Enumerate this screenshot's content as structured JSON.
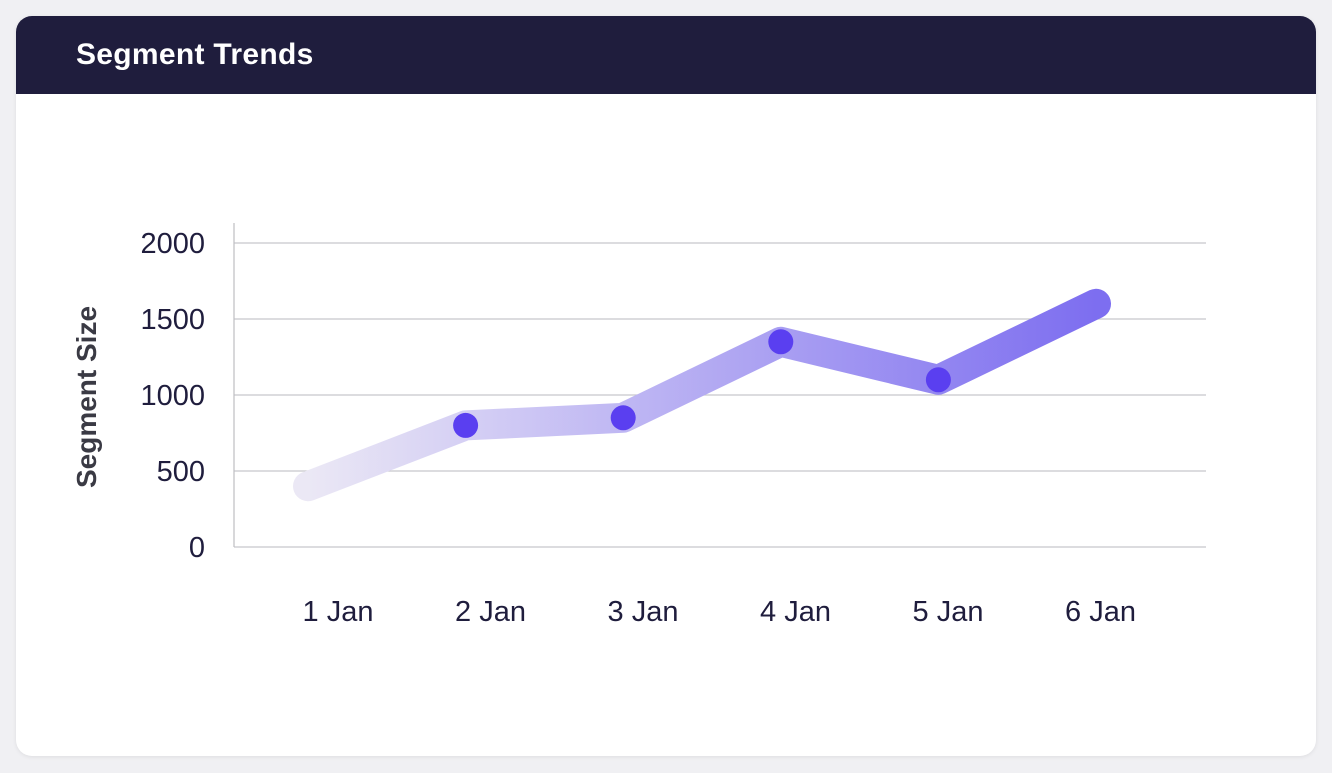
{
  "header": {
    "title": "Segment Trends"
  },
  "chart_data": {
    "type": "line",
    "title": "Segment Trends",
    "xlabel": "",
    "ylabel": "Segment Size",
    "categories": [
      "1 Jan",
      "2 Jan",
      "3 Jan",
      "4 Jan",
      "5 Jan",
      "6 Jan"
    ],
    "series": [
      {
        "values": [
          400,
          800,
          850,
          1350,
          1100,
          1600
        ],
        "markers": [
          false,
          true,
          true,
          true,
          true,
          false
        ]
      }
    ],
    "yticks": [
      0,
      500,
      1000,
      1500,
      2000
    ],
    "ylim": [
      0,
      2000
    ],
    "grid": true,
    "legend": "none",
    "colors": {
      "line_start": "#ebe8f5",
      "line_end": "#7d6ef0",
      "marker": "#5a3ff0",
      "grid": "#c8c8cc",
      "axis": "#bdbdc2",
      "text": "#1f1d3d",
      "header_bg": "#1f1d3d"
    }
  }
}
